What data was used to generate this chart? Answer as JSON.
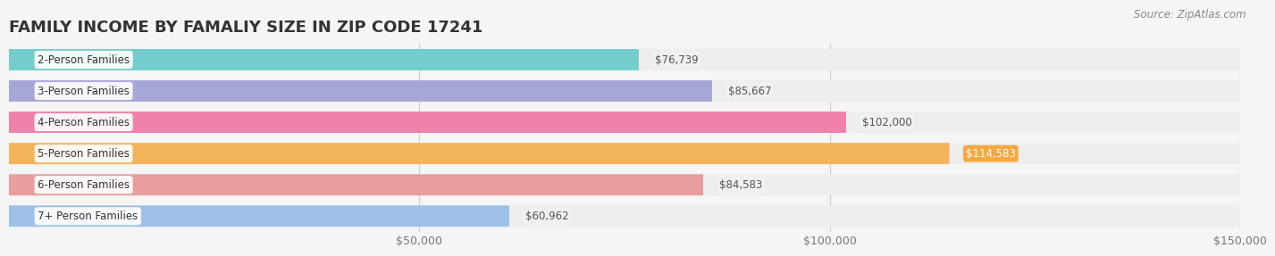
{
  "title": "FAMILY INCOME BY FAMALIY SIZE IN ZIP CODE 17241",
  "source": "Source: ZipAtlas.com",
  "categories": [
    "2-Person Families",
    "3-Person Families",
    "4-Person Families",
    "5-Person Families",
    "6-Person Families",
    "7+ Person Families"
  ],
  "values": [
    76739,
    85667,
    102000,
    114583,
    84583,
    60962
  ],
  "labels": [
    "$76,739",
    "$85,667",
    "$102,000",
    "$114,583",
    "$84,583",
    "$60,962"
  ],
  "bar_colors": [
    "#5DC8C8",
    "#9B9BD4",
    "#F06EA0",
    "#F5A940",
    "#E89090",
    "#90B8E8"
  ],
  "label_bg_colors": [
    "#f0f0f0",
    "#f0f0f0",
    "#f0f0f0",
    "#F5A940",
    "#f0f0f0",
    "#f0f0f0"
  ],
  "label_text_colors": [
    "#555555",
    "#555555",
    "#555555",
    "#ffffff",
    "#555555",
    "#555555"
  ],
  "background_color": "#f5f5f5",
  "bar_bg_color": "#eeeeee",
  "xlim": [
    0,
    150000
  ],
  "xticks": [
    0,
    50000,
    100000,
    150000
  ],
  "xtick_labels": [
    "",
    "$50,000",
    "$100,000",
    "$150,000"
  ],
  "title_fontsize": 13,
  "label_fontsize": 8.5,
  "category_fontsize": 8.5
}
